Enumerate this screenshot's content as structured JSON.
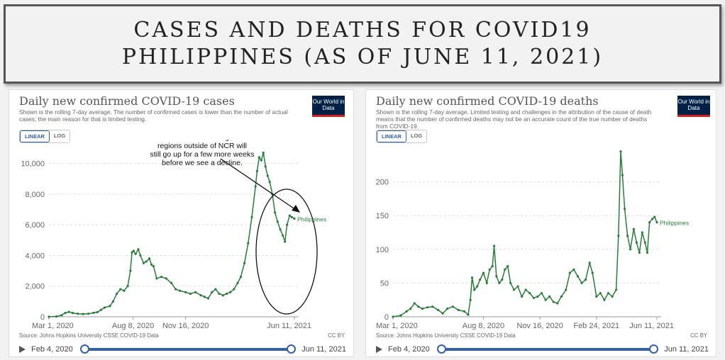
{
  "banner": {
    "line1": "CASES AND DEATHS FOR COVID19",
    "line2": "PHILIPPINES (AS OF JUNE 11, 2021)"
  },
  "logo_text": "Our World in Data",
  "colors": {
    "series": "#2a7c3b",
    "accent": "#3360a9",
    "grid": "#dddddd",
    "logo_bg": "#002147",
    "logo_bar": "#ce261e"
  },
  "chart_data": [
    {
      "type": "line",
      "title": "Daily new confirmed COVID-19 cases",
      "subtitle": "Shown is the rolling 7-day average. The number of confirmed cases is lower than the number of actual cases; the main reason for that is limited testing.",
      "scale_options": [
        "LINEAR",
        "LOG"
      ],
      "active_scale": "LINEAR",
      "xlabel": "",
      "ylabel": "",
      "xlim": [
        "2020-03-01",
        "2021-06-11"
      ],
      "ylim": [
        0,
        11000
      ],
      "x_ticks": [
        "Mar 1, 2020",
        "Aug 8, 2020",
        "Nov 16, 2020",
        "Jun 11, 2021"
      ],
      "y_ticks": [
        "0",
        "2,000",
        "4,000",
        "6,000",
        "8,000",
        "10,000"
      ],
      "y_tick_values": [
        0,
        2000,
        4000,
        6000,
        8000,
        10000
      ],
      "grid": "horizontal",
      "series": [
        {
          "name": "Philippines",
          "points": [
            [
              "2020-03-01",
              0
            ],
            [
              "2020-03-15",
              20
            ],
            [
              "2020-03-25",
              100
            ],
            [
              "2020-04-01",
              250
            ],
            [
              "2020-04-08",
              320
            ],
            [
              "2020-04-15",
              250
            ],
            [
              "2020-04-25",
              200
            ],
            [
              "2020-05-05",
              180
            ],
            [
              "2020-05-15",
              200
            ],
            [
              "2020-05-25",
              260
            ],
            [
              "2020-06-01",
              300
            ],
            [
              "2020-06-08",
              450
            ],
            [
              "2020-06-15",
              600
            ],
            [
              "2020-06-25",
              700
            ],
            [
              "2020-07-01",
              1000
            ],
            [
              "2020-07-08",
              1500
            ],
            [
              "2020-07-15",
              1800
            ],
            [
              "2020-07-22",
              1700
            ],
            [
              "2020-07-29",
              2000
            ],
            [
              "2020-08-03",
              3000
            ],
            [
              "2020-08-06",
              4200
            ],
            [
              "2020-08-09",
              4300
            ],
            [
              "2020-08-13",
              4100
            ],
            [
              "2020-08-18",
              4400
            ],
            [
              "2020-08-22",
              4000
            ],
            [
              "2020-08-28",
              3500
            ],
            [
              "2020-09-02",
              3600
            ],
            [
              "2020-09-08",
              3800
            ],
            [
              "2020-09-12",
              3400
            ],
            [
              "2020-09-16",
              3300
            ],
            [
              "2020-09-22",
              2500
            ],
            [
              "2020-10-01",
              2600
            ],
            [
              "2020-10-10",
              2500
            ],
            [
              "2020-10-20",
              2200
            ],
            [
              "2020-10-28",
              1800
            ],
            [
              "2020-11-05",
              1700
            ],
            [
              "2020-11-16",
              1600
            ],
            [
              "2020-11-25",
              1500
            ],
            [
              "2020-12-05",
              1600
            ],
            [
              "2020-12-15",
              1400
            ],
            [
              "2020-12-22",
              1300
            ],
            [
              "2020-12-29",
              1200
            ],
            [
              "2021-01-05",
              1600
            ],
            [
              "2021-01-12",
              1800
            ],
            [
              "2021-01-19",
              1500
            ],
            [
              "2021-01-26",
              1400
            ],
            [
              "2021-02-02",
              1500
            ],
            [
              "2021-02-09",
              1600
            ],
            [
              "2021-02-16",
              1800
            ],
            [
              "2021-02-23",
              2200
            ],
            [
              "2021-03-01",
              2600
            ],
            [
              "2021-03-08",
              3500
            ],
            [
              "2021-03-15",
              4800
            ],
            [
              "2021-03-22",
              6500
            ],
            [
              "2021-03-29",
              8500
            ],
            [
              "2021-04-01",
              9500
            ],
            [
              "2021-04-05",
              10400
            ],
            [
              "2021-04-09",
              10200
            ],
            [
              "2021-04-13",
              10700
            ],
            [
              "2021-04-17",
              9800
            ],
            [
              "2021-04-21",
              9200
            ],
            [
              "2021-04-25",
              8800
            ],
            [
              "2021-04-30",
              8000
            ],
            [
              "2021-05-05",
              6800
            ],
            [
              "2021-05-10",
              6200
            ],
            [
              "2021-05-15",
              5700
            ],
            [
              "2021-05-20",
              5300
            ],
            [
              "2021-05-24",
              4900
            ],
            [
              "2021-05-28",
              6000
            ],
            [
              "2021-06-02",
              6600
            ],
            [
              "2021-06-06",
              6500
            ],
            [
              "2021-06-11",
              6400
            ]
          ],
          "label": "Philippines"
        }
      ],
      "annotation": {
        "lines": [
          "New cases shifting to",
          "regions outside of NCR will",
          "still go up for a few more weeks",
          "before we see a decline."
        ]
      },
      "source": "Source: Johns Hopkins University CSSE COVID-19 Data",
      "license": "CC BY",
      "timeline": {
        "start": "Feb 4, 2020",
        "end": "Jun 11, 2021"
      }
    },
    {
      "type": "line",
      "title": "Daily new confirmed COVID-19 deaths",
      "subtitle": "Shown is the rolling 7-day average. Limited testing and challenges in the attribution of the cause of death means that the number of confirmed deaths may not be an accurate count of the true number of deaths from COVID-19.",
      "scale_options": [
        "LINEAR",
        "LOG"
      ],
      "active_scale": "LINEAR",
      "xlabel": "",
      "ylabel": "",
      "xlim": [
        "2020-03-01",
        "2021-06-11"
      ],
      "ylim": [
        0,
        250
      ],
      "x_ticks": [
        "Mar 1, 2020",
        "Aug 8, 2020",
        "Nov 16, 2020",
        "Feb 24, 2021",
        "Jun 11, 2021"
      ],
      "y_ticks": [
        "0",
        "50",
        "100",
        "150",
        "200"
      ],
      "y_tick_values": [
        0,
        50,
        100,
        150,
        200
      ],
      "grid": "horizontal",
      "series": [
        {
          "name": "Philippines",
          "points": [
            [
              "2020-03-01",
              0
            ],
            [
              "2020-03-15",
              2
            ],
            [
              "2020-03-25",
              8
            ],
            [
              "2020-04-01",
              12
            ],
            [
              "2020-04-08",
              20
            ],
            [
              "2020-04-15",
              15
            ],
            [
              "2020-04-22",
              12
            ],
            [
              "2020-05-01",
              14
            ],
            [
              "2020-05-10",
              15
            ],
            [
              "2020-05-20",
              10
            ],
            [
              "2020-05-28",
              5
            ],
            [
              "2020-06-05",
              12
            ],
            [
              "2020-06-15",
              15
            ],
            [
              "2020-06-25",
              10
            ],
            [
              "2020-07-05",
              8
            ],
            [
              "2020-07-12",
              3
            ],
            [
              "2020-07-16",
              25
            ],
            [
              "2020-07-19",
              58
            ],
            [
              "2020-07-23",
              40
            ],
            [
              "2020-07-28",
              45
            ],
            [
              "2020-08-02",
              55
            ],
            [
              "2020-08-08",
              65
            ],
            [
              "2020-08-14",
              50
            ],
            [
              "2020-08-19",
              70
            ],
            [
              "2020-08-24",
              75
            ],
            [
              "2020-08-27",
              105
            ],
            [
              "2020-08-31",
              60
            ],
            [
              "2020-09-05",
              50
            ],
            [
              "2020-09-10",
              55
            ],
            [
              "2020-09-15",
              70
            ],
            [
              "2020-09-20",
              75
            ],
            [
              "2020-09-25",
              50
            ],
            [
              "2020-10-01",
              40
            ],
            [
              "2020-10-08",
              45
            ],
            [
              "2020-10-15",
              30
            ],
            [
              "2020-10-22",
              40
            ],
            [
              "2020-10-29",
              35
            ],
            [
              "2020-11-05",
              28
            ],
            [
              "2020-11-12",
              30
            ],
            [
              "2020-11-19",
              35
            ],
            [
              "2020-11-26",
              25
            ],
            [
              "2020-12-03",
              30
            ],
            [
              "2020-12-10",
              22
            ],
            [
              "2020-12-17",
              20
            ],
            [
              "2020-12-24",
              30
            ],
            [
              "2021-01-01",
              40
            ],
            [
              "2021-01-08",
              65
            ],
            [
              "2021-01-15",
              70
            ],
            [
              "2021-01-22",
              60
            ],
            [
              "2021-01-29",
              50
            ],
            [
              "2021-02-05",
              55
            ],
            [
              "2021-02-12",
              80
            ],
            [
              "2021-02-17",
              65
            ],
            [
              "2021-02-24",
              30
            ],
            [
              "2021-03-03",
              35
            ],
            [
              "2021-03-10",
              25
            ],
            [
              "2021-03-17",
              35
            ],
            [
              "2021-03-24",
              30
            ],
            [
              "2021-03-31",
              40
            ],
            [
              "2021-04-04",
              120
            ],
            [
              "2021-04-08",
              245
            ],
            [
              "2021-04-11",
              210
            ],
            [
              "2021-04-15",
              160
            ],
            [
              "2021-04-20",
              120
            ],
            [
              "2021-04-25",
              100
            ],
            [
              "2021-05-01",
              130
            ],
            [
              "2021-05-06",
              110
            ],
            [
              "2021-05-11",
              95
            ],
            [
              "2021-05-16",
              125
            ],
            [
              "2021-05-21",
              110
            ],
            [
              "2021-05-25",
              95
            ],
            [
              "2021-05-29",
              140
            ],
            [
              "2021-06-03",
              145
            ],
            [
              "2021-06-07",
              148
            ],
            [
              "2021-06-11",
              140
            ]
          ],
          "label": "Philippines"
        }
      ],
      "source": "Source: Johns Hopkins University CSSE COVID-19 Data",
      "license": "CC BY",
      "timeline": {
        "start": "Feb 4, 2020",
        "end": "Jun 11, 2021"
      }
    }
  ]
}
